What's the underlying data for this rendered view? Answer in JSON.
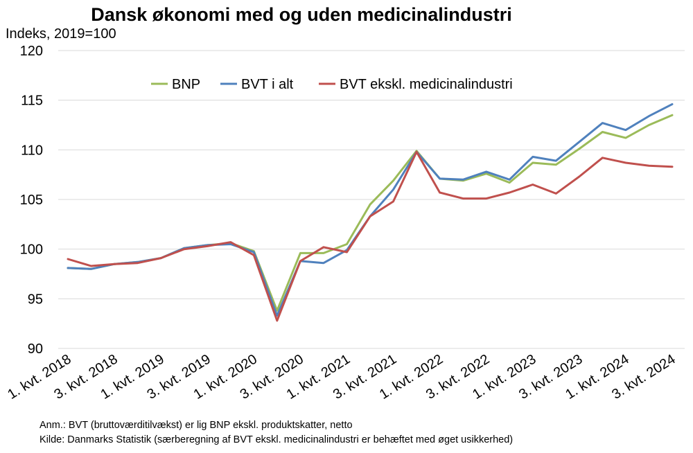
{
  "chart_data": {
    "type": "line",
    "title": "Dansk økonomi med og uden medicinalindustri",
    "ylabel": "Indeks, 2019=100",
    "xlabel": "",
    "ylim": [
      90,
      120
    ],
    "yticks": [
      90,
      95,
      100,
      105,
      110,
      115,
      120
    ],
    "grid": true,
    "legend_position": "top",
    "x": [
      "1. kvt. 2018",
      "2. kvt. 2018",
      "3. kvt. 2018",
      "4. kvt. 2018",
      "1. kvt. 2019",
      "2. kvt. 2019",
      "3. kvt. 2019",
      "4. kvt. 2019",
      "1. kvt. 2020",
      "2. kvt. 2020",
      "3. kvt. 2020",
      "4. kvt. 2020",
      "1. kvt. 2021",
      "2. kvt. 2021",
      "3. kvt. 2021",
      "4. kvt. 2021",
      "1. kvt. 2022",
      "2. kvt. 2022",
      "3. kvt. 2022",
      "4. kvt. 2022",
      "1. kvt. 2023",
      "2. kvt. 2023",
      "3. kvt. 2023",
      "4. kvt. 2023",
      "1. kvt. 2024",
      "2. kvt. 2024",
      "3. kvt. 2024"
    ],
    "x_tick_labels": [
      "1. kvt. 2018",
      "",
      "3. kvt. 2018",
      "",
      "1. kvt. 2019",
      "",
      "3. kvt. 2019",
      "",
      "1. kvt. 2020",
      "",
      "3. kvt. 2020",
      "",
      "1. kvt. 2021",
      "",
      "3. kvt. 2021",
      "",
      "1. kvt. 2022",
      "",
      "3. kvt. 2022",
      "",
      "1. kvt. 2023",
      "",
      "3. kvt. 2023",
      "",
      "1. kvt. 2024",
      "",
      "3. kvt. 2024"
    ],
    "series": [
      {
        "name": "BNP",
        "color": "#9BBB59",
        "values": [
          98.1,
          98.0,
          98.5,
          98.7,
          99.1,
          100.1,
          100.4,
          100.6,
          99.8,
          93.8,
          99.6,
          99.6,
          100.5,
          104.5,
          106.9,
          109.9,
          107.1,
          106.9,
          107.6,
          106.7,
          108.7,
          108.5,
          110.1,
          111.8,
          111.2,
          112.5,
          113.5
        ]
      },
      {
        "name": "BVT i alt",
        "color": "#4F81BD",
        "values": [
          98.1,
          98.0,
          98.5,
          98.7,
          99.1,
          100.1,
          100.4,
          100.5,
          99.7,
          93.3,
          98.8,
          98.6,
          99.9,
          103.3,
          106.0,
          109.8,
          107.1,
          107.0,
          107.8,
          107.0,
          109.3,
          108.9,
          110.8,
          112.7,
          112.0,
          113.4,
          114.6
        ]
      },
      {
        "name": "BVT ekskl. medicinalindustri",
        "color": "#C0504D",
        "values": [
          99.0,
          98.3,
          98.5,
          98.6,
          99.1,
          100.0,
          100.3,
          100.7,
          99.4,
          92.8,
          98.8,
          100.2,
          99.7,
          103.3,
          104.8,
          109.8,
          105.7,
          105.1,
          105.1,
          105.7,
          106.5,
          105.6,
          107.3,
          109.2,
          108.7,
          108.4,
          108.3
        ]
      }
    ]
  },
  "notes": {
    "anm": "Anm.: BVT (bruttoværditilvækst) er lig BNP ekskl. produktskatter, netto",
    "kilde": "Kilde: Danmarks Statistik (særberegning af BVT ekskl. medicinalindustri er behæftet med øget usikkerhed)"
  }
}
